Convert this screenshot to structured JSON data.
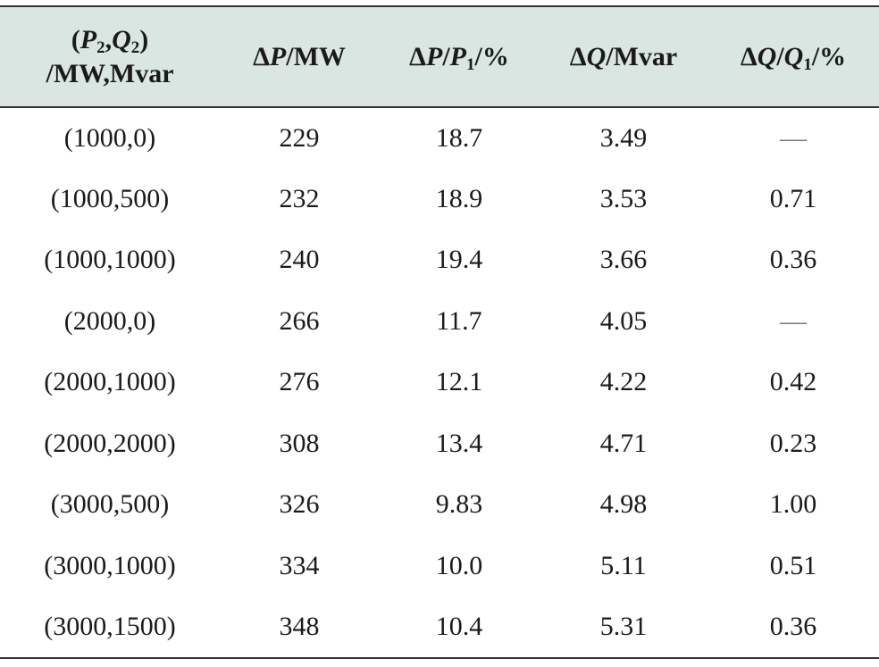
{
  "header": {
    "col1_line1_p": "P",
    "col1_line1_p_sub": "2",
    "col1_line1_q": "Q",
    "col1_line1_q_sub": "2",
    "col1_line2": "/MW,Mvar",
    "col2_delta": "Δ",
    "col2_var": "P",
    "col2_unit": "/MW",
    "col3_delta": "Δ",
    "col3_var": "P",
    "col3_div": "P",
    "col3_div_sub": "1",
    "col3_unit": "/%",
    "col4_delta": "Δ",
    "col4_var": "Q",
    "col4_unit": "/Mvar",
    "col5_delta": "Δ",
    "col5_var": "Q",
    "col5_div": "Q",
    "col5_div_sub": "1",
    "col5_unit": "/%"
  },
  "rows": [
    {
      "pq": "(1000,0)",
      "dp": "229",
      "dp_pct": "18.7",
      "dq": "3.49",
      "dq_pct": "—"
    },
    {
      "pq": "(1000,500)",
      "dp": "232",
      "dp_pct": "18.9",
      "dq": "3.53",
      "dq_pct": "0.71"
    },
    {
      "pq": "(1000,1000)",
      "dp": "240",
      "dp_pct": "19.4",
      "dq": "3.66",
      "dq_pct": "0.36"
    },
    {
      "pq": "(2000,0)",
      "dp": "266",
      "dp_pct": "11.7",
      "dq": "4.05",
      "dq_pct": "—"
    },
    {
      "pq": "(2000,1000)",
      "dp": "276",
      "dp_pct": "12.1",
      "dq": "4.22",
      "dq_pct": "0.42"
    },
    {
      "pq": "(2000,2000)",
      "dp": "308",
      "dp_pct": "13.4",
      "dq": "4.71",
      "dq_pct": "0.23"
    },
    {
      "pq": "(3000,500)",
      "dp": "326",
      "dp_pct": "9.83",
      "dq": "4.98",
      "dq_pct": "1.00"
    },
    {
      "pq": "(3000,1000)",
      "dp": "334",
      "dp_pct": "10.0",
      "dq": "5.11",
      "dq_pct": "0.51"
    },
    {
      "pq": "(3000,1500)",
      "dp": "348",
      "dp_pct": "10.4",
      "dq": "5.31",
      "dq_pct": "0.36"
    }
  ]
}
